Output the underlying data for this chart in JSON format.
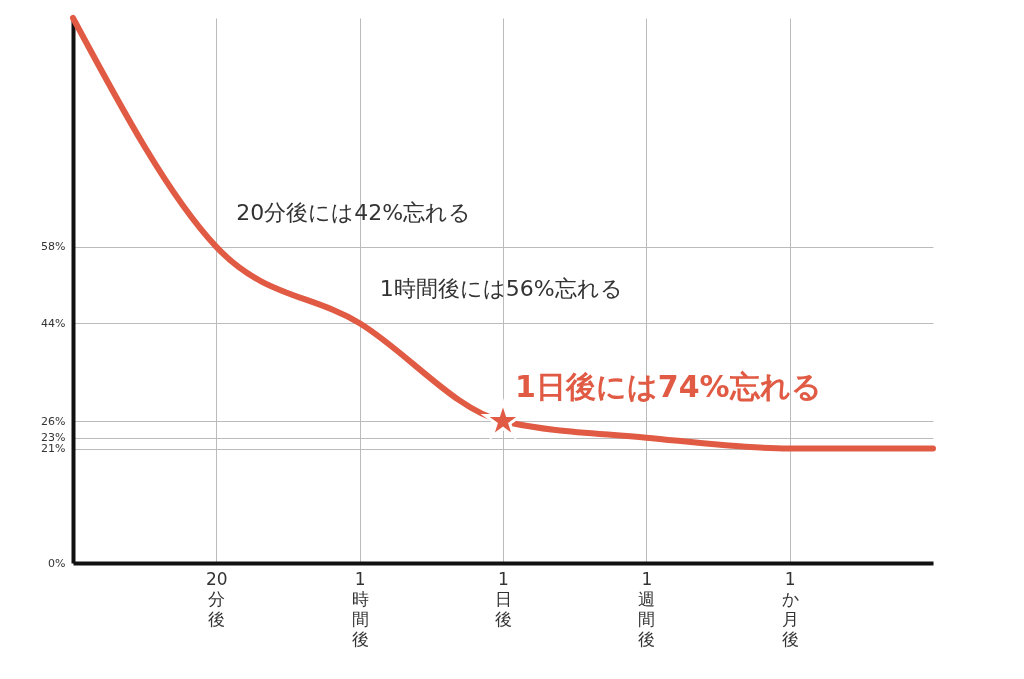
{
  "chart_data": {
    "type": "line",
    "categories": [
      null,
      "20分後",
      "1時間後",
      "1日後",
      "1週間後",
      "1か月後",
      null
    ],
    "series": [
      {
        "color": "#e05a44",
        "values": [
          100,
          58,
          44,
          26,
          23,
          21,
          21
        ]
      }
    ],
    "ylim": [
      0,
      100
    ],
    "yticks": [
      {
        "value": 0,
        "label": "0%"
      },
      {
        "value": 21,
        "label": "21%"
      },
      {
        "value": 23,
        "label": "23%"
      },
      {
        "value": 26,
        "label": "26%"
      },
      {
        "value": 44,
        "label": "44%"
      },
      {
        "value": 58,
        "label": "58%"
      }
    ],
    "grid": true,
    "annotations": [
      {
        "text": "20分後には42%忘れる",
        "x": "20分後",
        "y": 58
      },
      {
        "text": "1時間後には56%忘れる",
        "x": "1時間後",
        "y": 44
      },
      {
        "text": "1日後には74%忘れる",
        "x": "1日後",
        "y": 26
      }
    ]
  }
}
